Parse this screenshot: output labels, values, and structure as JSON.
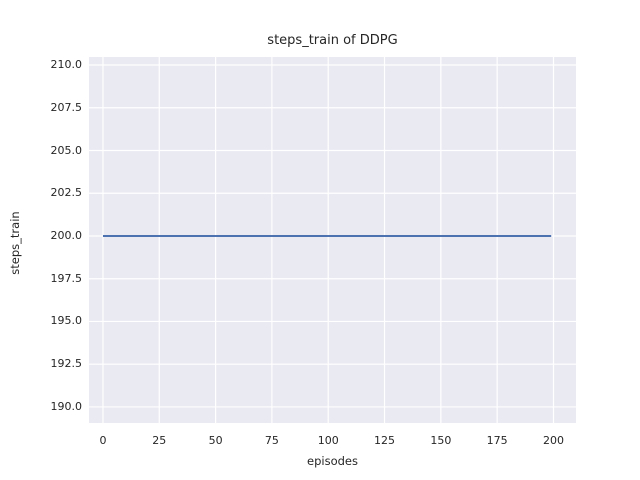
{
  "figure": {
    "background": "#ffffff",
    "text_color": "#262626"
  },
  "chart_data": {
    "type": "line",
    "title": "steps_train of DDPG",
    "xlabel": "episodes",
    "ylabel": "steps_train",
    "axes_background": "#eaeaf2",
    "grid": {
      "show": true,
      "color": "#ffffff"
    },
    "legend": null,
    "xlim": [
      -6.2,
      210.0
    ],
    "ylim": [
      189.06,
      210.47
    ],
    "xticks": {
      "values": [
        0,
        25,
        50,
        75,
        100,
        125,
        150,
        175,
        200
      ],
      "labels": [
        "0",
        "25",
        "50",
        "75",
        "100",
        "125",
        "150",
        "175",
        "200"
      ]
    },
    "yticks": {
      "values": [
        190.0,
        192.5,
        195.0,
        197.5,
        200.0,
        202.5,
        205.0,
        207.5,
        210.0
      ],
      "labels": [
        "190.0",
        "192.5",
        "195.0",
        "197.5",
        "200.0",
        "202.5",
        "205.0",
        "207.5",
        "210.0"
      ]
    },
    "series": [
      {
        "name": "steps_train",
        "color": "#4c72b0",
        "line_width": 2,
        "x": [
          0,
          199
        ],
        "y": [
          200,
          200
        ]
      }
    ]
  }
}
